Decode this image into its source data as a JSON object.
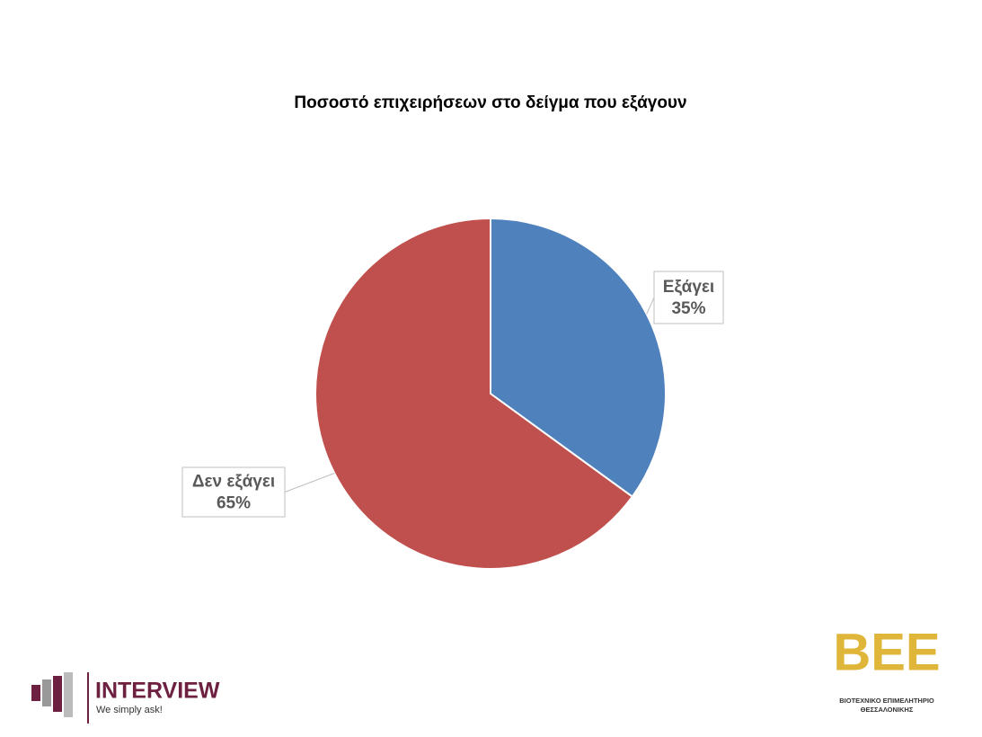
{
  "chart_data": {
    "type": "pie",
    "title": "Ποσοστό επιχειρήσεων στο δείγμα που εξάγουν",
    "categories": [
      "Εξάγει",
      "Δεν εξάγει"
    ],
    "values": [
      35,
      65
    ],
    "value_labels": [
      "35%",
      "65%"
    ],
    "colors": [
      "#4f81bd",
      "#c0504d"
    ]
  },
  "logos": {
    "interview": {
      "name": "INTERVIEW",
      "tagline": "We simply ask!"
    },
    "bee": {
      "mark": "ΒΕΕ",
      "line1": "ΒΙΟΤΕΧΝΙΚΟ ΕΠΙΜΕΛΗΤΗΡΙΟ",
      "line2": "ΘΕΣΣΑΛΟΝΙΚΗΣ"
    }
  }
}
